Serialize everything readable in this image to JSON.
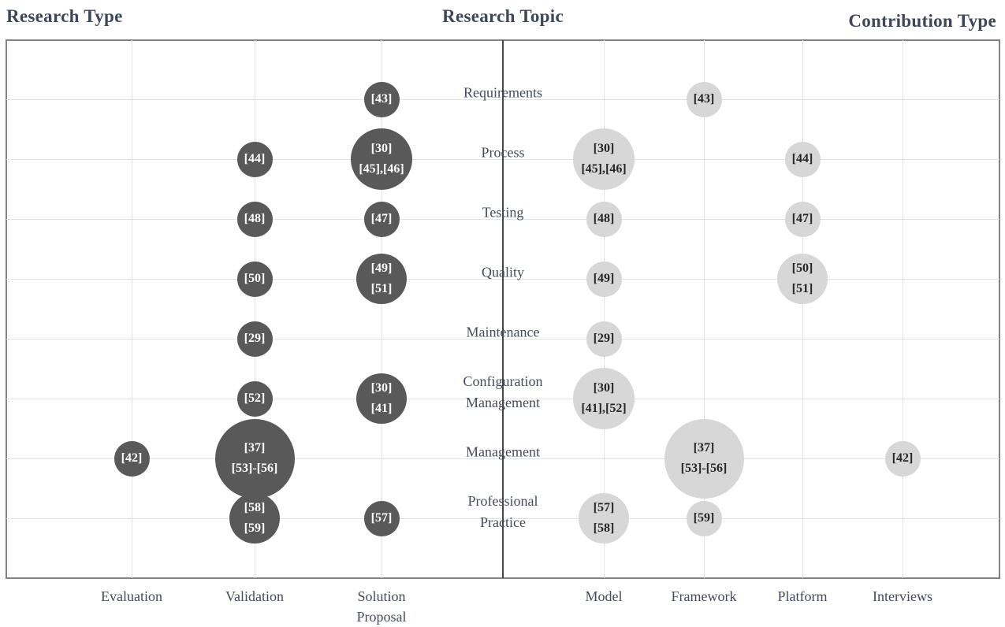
{
  "figure": {
    "title_left": "Research Type",
    "title_center": "Research Topic",
    "title_right": "Contribution Type"
  },
  "colors": {
    "dark_bubble": "#595959",
    "dark_bubble_text": "#ffffff",
    "light_bubble": "#d7d7d7",
    "light_bubble_text": "#262626",
    "gridline": "#e3e3e3",
    "plot_border": "#828282",
    "divider": "#454545",
    "title_text": "#3d4759",
    "label_text": "#454b5c"
  },
  "chart_data": {
    "type": "bubble",
    "description": "Double bubble matrix: research topics (rows) vs research type (left panel) and contribution type (right panel); bubble area scales with number of cited articles; bubble labels are citation references",
    "topics": [
      "Requirements",
      "Process",
      "Testing",
      "Quality",
      "Maintenance",
      "Configuration Management",
      "Management",
      "Professional Practice"
    ],
    "size_rule": "diameter proportional to sqrt(article count)",
    "grid": true,
    "panels": [
      {
        "id": "left",
        "title": "Research Type",
        "bubble_style": "dark",
        "categories": [
          "Evaluation",
          "Validation",
          "Solution Proposal"
        ],
        "bubbles": [
          {
            "category": "Solution Proposal",
            "topic": "Requirements",
            "refs": [
              "[43]"
            ],
            "count": 1
          },
          {
            "category": "Validation",
            "topic": "Process",
            "refs": [
              "[44]"
            ],
            "count": 1
          },
          {
            "category": "Solution Proposal",
            "topic": "Process",
            "refs": [
              "[30]",
              "[45],[46]"
            ],
            "count": 3
          },
          {
            "category": "Validation",
            "topic": "Testing",
            "refs": [
              "[48]"
            ],
            "count": 1
          },
          {
            "category": "Solution Proposal",
            "topic": "Testing",
            "refs": [
              "[47]"
            ],
            "count": 1
          },
          {
            "category": "Validation",
            "topic": "Quality",
            "refs": [
              "[50]"
            ],
            "count": 1
          },
          {
            "category": "Solution Proposal",
            "topic": "Quality",
            "refs": [
              "[49]",
              "[51]"
            ],
            "count": 2
          },
          {
            "category": "Validation",
            "topic": "Maintenance",
            "refs": [
              "[29]"
            ],
            "count": 1
          },
          {
            "category": "Validation",
            "topic": "Configuration Management",
            "refs": [
              "[52]"
            ],
            "count": 1
          },
          {
            "category": "Solution Proposal",
            "topic": "Configuration Management",
            "refs": [
              "[30]",
              "[41]"
            ],
            "count": 2
          },
          {
            "category": "Evaluation",
            "topic": "Management",
            "refs": [
              "[42]"
            ],
            "count": 1
          },
          {
            "category": "Validation",
            "topic": "Management",
            "refs": [
              "[37]",
              "[53]-[56]"
            ],
            "count": 5
          },
          {
            "category": "Validation",
            "topic": "Professional Practice",
            "refs": [
              "[58]",
              "[59]"
            ],
            "count": 2
          },
          {
            "category": "Solution Proposal",
            "topic": "Professional Practice",
            "refs": [
              "[57]"
            ],
            "count": 1
          }
        ]
      },
      {
        "id": "right",
        "title": "Contribution Type",
        "bubble_style": "light",
        "categories": [
          "Model",
          "Framework",
          "Platform",
          "Interviews"
        ],
        "bubbles": [
          {
            "category": "Framework",
            "topic": "Requirements",
            "refs": [
              "[43]"
            ],
            "count": 1
          },
          {
            "category": "Model",
            "topic": "Process",
            "refs": [
              "[30]",
              "[45],[46]"
            ],
            "count": 3
          },
          {
            "category": "Platform",
            "topic": "Process",
            "refs": [
              "[44]"
            ],
            "count": 1
          },
          {
            "category": "Model",
            "topic": "Testing",
            "refs": [
              "[48]"
            ],
            "count": 1
          },
          {
            "category": "Platform",
            "topic": "Testing",
            "refs": [
              "[47]"
            ],
            "count": 1
          },
          {
            "category": "Model",
            "topic": "Quality",
            "refs": [
              "[49]"
            ],
            "count": 1
          },
          {
            "category": "Platform",
            "topic": "Quality",
            "refs": [
              "[50]",
              "[51]"
            ],
            "count": 2
          },
          {
            "category": "Model",
            "topic": "Maintenance",
            "refs": [
              "[29]"
            ],
            "count": 1
          },
          {
            "category": "Model",
            "topic": "Configuration Management",
            "refs": [
              "[30]",
              "[41],[52]"
            ],
            "count": 3
          },
          {
            "category": "Framework",
            "topic": "Management",
            "refs": [
              "[37]",
              "[53]-[56]"
            ],
            "count": 5
          },
          {
            "category": "Interviews",
            "topic": "Management",
            "refs": [
              "[42]"
            ],
            "count": 1
          },
          {
            "category": "Model",
            "topic": "Professional Practice",
            "refs": [
              "[57]",
              "[58]"
            ],
            "count": 2
          },
          {
            "category": "Framework",
            "topic": "Professional Practice",
            "refs": [
              "[59]"
            ],
            "count": 1
          }
        ]
      }
    ]
  }
}
